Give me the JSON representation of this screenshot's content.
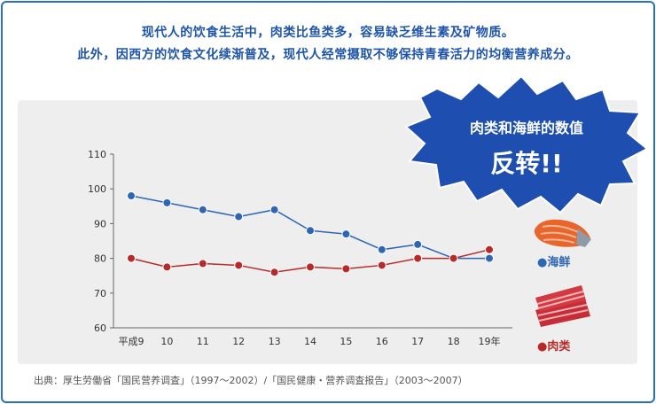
{
  "header": {
    "line1": "现代人的饮食生活中，肉类比鱼类多，容易缺乏维生素及矿物质。",
    "line2": "此外，因西方的饮食文化续渐普及，现代人经常摄取不够保持青春活力的均衡营养成分。"
  },
  "callout": {
    "line1": "肉类和海鲜的数值",
    "line2": "反转!!"
  },
  "source": "出典：厚生劳働省「国民营养调査」（1997～2002）/「国民健康・营养调査报告」（2003～2007）",
  "colors": {
    "seafood": "#2f66b3",
    "meat": "#b72a2a",
    "burst": "#1e4fb0"
  },
  "chart_data": {
    "type": "line",
    "categories": [
      "平成9",
      "10",
      "11",
      "12",
      "13",
      "14",
      "15",
      "16",
      "17",
      "18",
      "19年"
    ],
    "ylim": [
      60,
      110
    ],
    "yticks": [
      60,
      70,
      80,
      90,
      100,
      110
    ],
    "grid": false,
    "legend_placement": "right",
    "series": [
      {
        "name": "●海鲜",
        "color": "#2f66b3",
        "values": [
          98,
          96,
          94,
          92,
          94,
          88,
          87,
          82.5,
          84,
          80,
          80
        ]
      },
      {
        "name": "●肉类",
        "color": "#b72a2a",
        "values": [
          80,
          77.5,
          78.5,
          78,
          76,
          77.5,
          77,
          78,
          80,
          80,
          82.5
        ]
      }
    ]
  }
}
